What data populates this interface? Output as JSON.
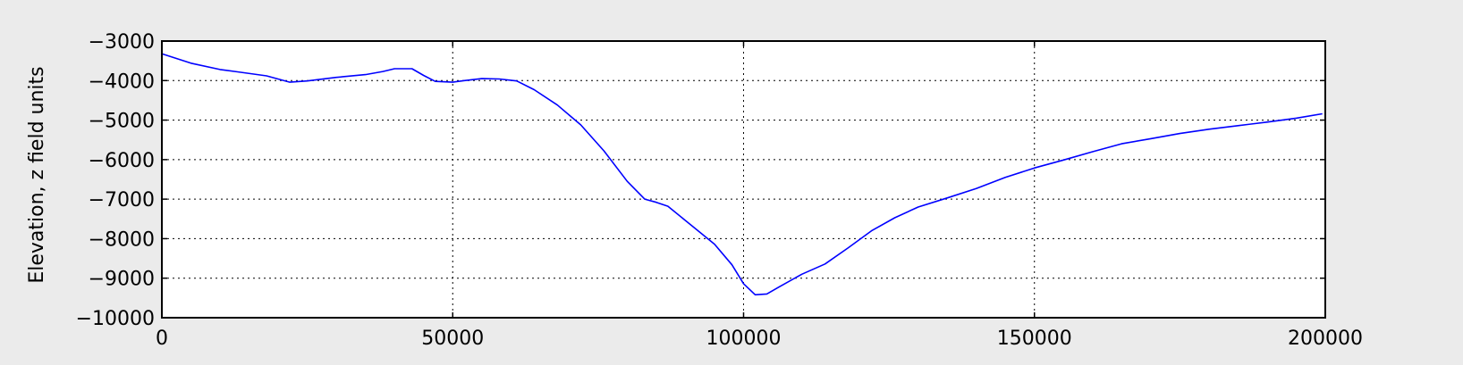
{
  "chart_data": {
    "type": "line",
    "title": "",
    "xlabel": "",
    "ylabel": "Elevation, z field units",
    "xlim": [
      0,
      200000
    ],
    "ylim": [
      -10000,
      -3000
    ],
    "xticks": [
      0,
      50000,
      100000,
      150000,
      200000
    ],
    "yticks": [
      -10000,
      -9000,
      -8000,
      -7000,
      -6000,
      -5000,
      -4000,
      -3000
    ],
    "xtick_labels": [
      "0",
      "50000",
      "100000",
      "150000",
      "200000"
    ],
    "ytick_labels": [
      "−10000",
      "−9000",
      "−8000",
      "−7000",
      "−6000",
      "−5000",
      "−4000",
      "−3000"
    ],
    "grid": true,
    "series": [
      {
        "color": "#0000ff",
        "x": [
          0,
          5000,
          10000,
          13000,
          18000,
          22000,
          25000,
          30000,
          35000,
          38000,
          40000,
          43000,
          45000,
          47000,
          50000,
          52000,
          55000,
          58000,
          61000,
          64000,
          68000,
          72000,
          76000,
          80000,
          83000,
          85000,
          87000,
          90000,
          95000,
          98000,
          100000,
          102000,
          104000,
          106000,
          110000,
          114000,
          118000,
          122000,
          126000,
          130000,
          135000,
          140000,
          145000,
          150000,
          155000,
          160000,
          165000,
          170000,
          175000,
          180000,
          185000,
          190000,
          195000,
          199500
        ],
        "y": [
          -3320,
          -3560,
          -3720,
          -3780,
          -3880,
          -4040,
          -4010,
          -3920,
          -3850,
          -3770,
          -3700,
          -3700,
          -3870,
          -4020,
          -4040,
          -4000,
          -3950,
          -3960,
          -4010,
          -4230,
          -4620,
          -5120,
          -5780,
          -6550,
          -7000,
          -7080,
          -7180,
          -7540,
          -8140,
          -8660,
          -9140,
          -9420,
          -9400,
          -9230,
          -8900,
          -8640,
          -8230,
          -7800,
          -7470,
          -7200,
          -6970,
          -6730,
          -6450,
          -6210,
          -6010,
          -5800,
          -5600,
          -5470,
          -5340,
          -5230,
          -5140,
          -5050,
          -4950,
          -4840
        ]
      }
    ]
  }
}
